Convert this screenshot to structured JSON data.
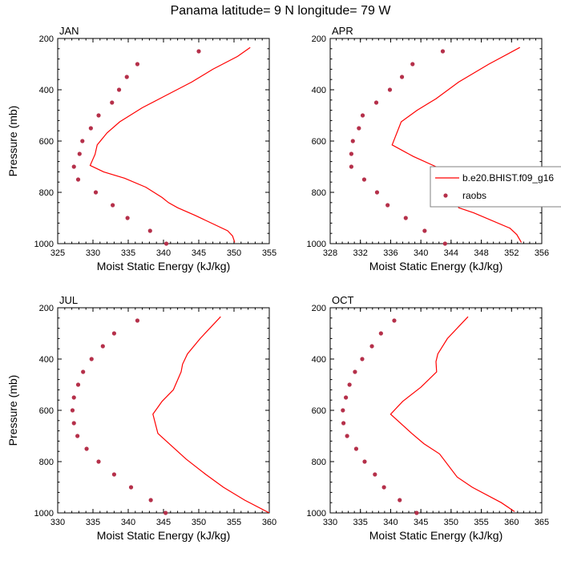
{
  "figure_title": "Panama  latitude= 9 N longitude= 79 W",
  "legend": {
    "model_label": "b.e20.BHIST.f09_g16",
    "obs_label": "raobs"
  },
  "colors": {
    "model": "#ff0000",
    "obs": "#b5304a",
    "axes": "#000000"
  },
  "chart_data": [
    {
      "type": "line",
      "panel": "JAN",
      "title": "JAN",
      "xlabel": "Moist Static Energy (kJ/kg)",
      "ylabel": "Pressure (mb)",
      "xlim": [
        325,
        355
      ],
      "xticks": [
        325,
        330,
        335,
        340,
        345,
        350,
        355
      ],
      "ylim": [
        1000,
        200
      ],
      "yticks": [
        200,
        400,
        600,
        800,
        1000
      ],
      "model": {
        "name": "b.e20.BHIST.f09_g16",
        "x": [
          352.3,
          350.5,
          347,
          344,
          340.5,
          337,
          333.8,
          332,
          330.6,
          330.3,
          329.6,
          331.5,
          334.5,
          337.5,
          339.8,
          340.7,
          342,
          344.5,
          349.1,
          349.8,
          350.1
        ],
        "y": [
          235,
          270,
          320,
          370,
          420,
          470,
          525,
          568,
          615,
          652,
          695,
          720,
          745,
          780,
          820,
          840,
          860,
          890,
          950,
          970,
          995
        ]
      },
      "raobs": {
        "name": "raobs",
        "x": [
          345,
          336.3,
          334.8,
          333.7,
          332.7,
          330.8,
          329.7,
          328.5,
          328.1,
          327.3,
          327.9,
          330.4,
          332.8,
          334.9,
          338.1,
          340.4
        ],
        "y": [
          250,
          300,
          350,
          400,
          450,
          500,
          550,
          600,
          650,
          700,
          750,
          800,
          850,
          900,
          950,
          1000
        ]
      }
    },
    {
      "type": "line",
      "panel": "APR",
      "title": "APR",
      "xlabel": "Moist Static Energy (kJ/kg)",
      "ylabel": "",
      "xlim": [
        328,
        356
      ],
      "xticks": [
        328,
        332,
        336,
        340,
        344,
        348,
        352,
        356
      ],
      "ylim": [
        1000,
        200
      ],
      "yticks": [
        200,
        400,
        600,
        800,
        1000
      ],
      "model": {
        "name": "b.e20.BHIST.f09_g16",
        "x": [
          353.1,
          349,
          345,
          342,
          339.5,
          337.4,
          336.2,
          339,
          342,
          344.3,
          344.5,
          344.7,
          345,
          347,
          351.8,
          352.7,
          353.3
        ],
        "y": [
          235,
          300,
          370,
          435,
          480,
          525,
          615,
          660,
          700,
          750,
          780,
          820,
          860,
          880,
          940,
          965,
          995
        ]
      },
      "raobs": {
        "name": "raobs",
        "x": [
          342.9,
          338.9,
          337.5,
          335.9,
          334.1,
          332.3,
          331.8,
          331,
          330.8,
          330.8,
          332.5,
          334.2,
          335.6,
          338,
          340.5,
          343.2
        ],
        "y": [
          250,
          300,
          350,
          400,
          450,
          500,
          550,
          600,
          650,
          700,
          750,
          800,
          850,
          900,
          950,
          1000
        ]
      }
    },
    {
      "type": "line",
      "panel": "JUL",
      "title": "JUL",
      "xlabel": "Moist Static Energy (kJ/kg)",
      "ylabel": "Pressure (mb)",
      "xlim": [
        330,
        360
      ],
      "xticks": [
        330,
        335,
        340,
        345,
        350,
        355,
        360
      ],
      "ylim": [
        1000,
        200
      ],
      "yticks": [
        200,
        400,
        600,
        800,
        1000
      ],
      "model": {
        "name": "b.e20.BHIST.f09_g16",
        "x": [
          353.1,
          350.2,
          348.4,
          347.7,
          347.5,
          346.4,
          344.8,
          343.5,
          344.2,
          346.2,
          348.2,
          351,
          353.5,
          356.5,
          360
        ],
        "y": [
          235,
          320,
          380,
          420,
          450,
          520,
          565,
          615,
          690,
          740,
          790,
          850,
          900,
          950,
          1000
        ]
      },
      "raobs": {
        "name": "raobs",
        "x": [
          341.3,
          338,
          336.4,
          334.8,
          333.6,
          332.9,
          332.3,
          332.1,
          332.3,
          332.8,
          334.1,
          335.8,
          338,
          340.4,
          343.2,
          345.3
        ],
        "y": [
          250,
          300,
          350,
          400,
          450,
          500,
          550,
          600,
          650,
          700,
          750,
          800,
          850,
          900,
          950,
          1000
        ]
      }
    },
    {
      "type": "line",
      "panel": "OCT",
      "title": "OCT",
      "xlabel": "Moist Static Energy (kJ/kg)",
      "ylabel": "",
      "xlim": [
        330,
        365
      ],
      "xticks": [
        330,
        335,
        340,
        345,
        350,
        355,
        360,
        365
      ],
      "ylim": [
        1000,
        200
      ],
      "yticks": [
        200,
        400,
        600,
        800,
        1000
      ],
      "model": {
        "name": "b.e20.BHIST.f09_g16",
        "x": [
          352.8,
          349.4,
          347.8,
          347.5,
          347.6,
          345,
          342,
          340,
          343.5,
          345.5,
          348.1,
          351,
          353.5,
          358.3,
          360.5
        ],
        "y": [
          235,
          320,
          380,
          410,
          450,
          510,
          565,
          615,
          690,
          730,
          770,
          860,
          900,
          960,
          995
        ]
      },
      "raobs": {
        "name": "raobs",
        "x": [
          340.6,
          338.4,
          336.9,
          335.3,
          334.1,
          333.2,
          332.6,
          332.1,
          332.2,
          332.8,
          334.3,
          335.7,
          337.4,
          338.9,
          341.5,
          344.3
        ],
        "y": [
          250,
          300,
          350,
          400,
          450,
          500,
          550,
          600,
          650,
          700,
          750,
          800,
          850,
          900,
          950,
          1000
        ]
      }
    }
  ]
}
